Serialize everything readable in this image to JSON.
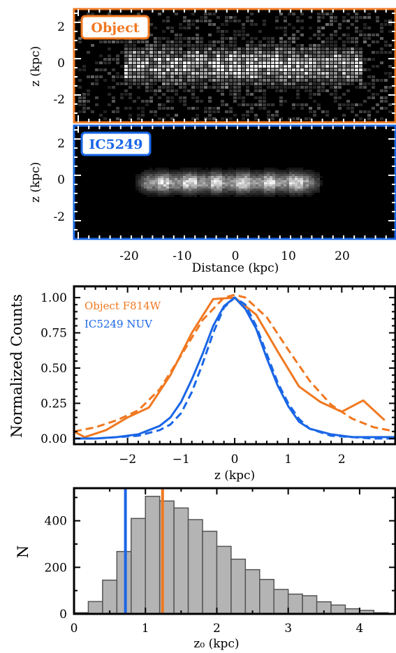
{
  "colors": {
    "object": "#f07820",
    "ic5249": "#1a66e6",
    "hist_fill": "#b4b4b4",
    "hist_edge": "#555555",
    "axis": "#000000"
  },
  "panel_object": {
    "badge": "Object",
    "ylabel": "z (kpc)",
    "yticks": [
      "2",
      "0",
      "-2"
    ]
  },
  "panel_ic5249": {
    "badge": "IC5249",
    "ylabel": "z (kpc)",
    "yticks": [
      "2",
      "0",
      "-2"
    ],
    "xticks": [
      "-20",
      "-10",
      "0",
      "10",
      "20"
    ],
    "xlabel": "Distance (kpc)"
  },
  "chart_data": [
    {
      "type": "line",
      "xlabel": "z (kpc)",
      "ylabel": "Normalized Counts",
      "xlim": [
        -3.0,
        3.0
      ],
      "ylim": [
        -0.04,
        1.08
      ],
      "xticks": [
        "−2",
        "−1",
        "0",
        "1",
        "2"
      ],
      "yticks": [
        "0.00",
        "0.25",
        "0.50",
        "0.75",
        "1.00"
      ],
      "legend": [
        "Object F814W",
        "IC5249 NUV"
      ],
      "series": [
        {
          "name": "Object F814W",
          "style": "solid",
          "x": [
            -3.0,
            -2.8,
            -2.4,
            -2.0,
            -1.6,
            -1.2,
            -0.8,
            -0.4,
            0.0,
            0.4,
            0.8,
            1.2,
            1.6,
            2.0,
            2.4,
            2.8
          ],
          "y": [
            0.05,
            0.01,
            0.06,
            0.15,
            0.22,
            0.45,
            0.75,
            0.99,
            1.0,
            0.88,
            0.62,
            0.37,
            0.26,
            0.19,
            0.27,
            0.13
          ]
        },
        {
          "name": "Object F814W",
          "style": "dashed",
          "x": [
            -3.0,
            -2.6,
            -2.2,
            -1.8,
            -1.4,
            -1.0,
            -0.6,
            -0.2,
            0.0,
            0.2,
            0.6,
            1.0,
            1.4,
            1.8,
            2.2,
            2.6,
            3.0
          ],
          "y": [
            0.05,
            0.08,
            0.13,
            0.2,
            0.35,
            0.59,
            0.84,
            1.0,
            1.02,
            1.0,
            0.86,
            0.63,
            0.41,
            0.24,
            0.14,
            0.08,
            0.05
          ]
        },
        {
          "name": "IC5249 NUV",
          "style": "solid",
          "x": [
            -3.0,
            -2.6,
            -2.2,
            -1.8,
            -1.4,
            -1.2,
            -1.0,
            -0.8,
            -0.6,
            -0.4,
            -0.2,
            0.0,
            0.2,
            0.4,
            0.6,
            0.8,
            1.0,
            1.2,
            1.4,
            1.8,
            2.2,
            2.6,
            3.0
          ],
          "y": [
            0.0,
            0.0,
            0.01,
            0.03,
            0.09,
            0.15,
            0.26,
            0.42,
            0.6,
            0.8,
            0.94,
            1.0,
            0.92,
            0.78,
            0.57,
            0.38,
            0.23,
            0.12,
            0.07,
            0.03,
            0.01,
            0.01,
            0.01
          ]
        },
        {
          "name": "IC5249 NUV",
          "style": "dashed",
          "x": [
            -3.0,
            -2.6,
            -2.2,
            -1.8,
            -1.4,
            -1.2,
            -1.0,
            -0.8,
            -0.6,
            -0.4,
            -0.2,
            0.0,
            0.2,
            0.4,
            0.6,
            0.8,
            1.0,
            1.2,
            1.4,
            1.8,
            2.2,
            2.6,
            3.0
          ],
          "y": [
            0.0,
            0.0,
            0.01,
            0.02,
            0.06,
            0.1,
            0.18,
            0.33,
            0.53,
            0.75,
            0.93,
            1.0,
            0.95,
            0.8,
            0.6,
            0.4,
            0.25,
            0.14,
            0.07,
            0.02,
            0.01,
            0.0,
            0.0
          ]
        }
      ]
    },
    {
      "type": "bar",
      "xlabel": "z₀ (kpc)",
      "ylabel": "N",
      "xlim": [
        0.0,
        4.5
      ],
      "ylim": [
        0,
        540
      ],
      "xticks": [
        "0",
        "1",
        "2",
        "3",
        "4"
      ],
      "yticks": [
        "0",
        "200",
        "400"
      ],
      "bin_width": 0.2,
      "bin_starts": [
        0.0,
        0.2,
        0.4,
        0.6,
        0.8,
        1.0,
        1.2,
        1.4,
        1.6,
        1.8,
        2.0,
        2.2,
        2.4,
        2.6,
        2.8,
        3.0,
        3.2,
        3.4,
        3.6,
        3.8,
        4.0,
        4.2
      ],
      "values": [
        5,
        53,
        145,
        268,
        410,
        505,
        485,
        455,
        405,
        355,
        290,
        235,
        190,
        148,
        105,
        85,
        78,
        52,
        38,
        22,
        15,
        5
      ],
      "vlines": [
        {
          "name": "IC5249",
          "x": 0.72
        },
        {
          "name": "Object",
          "x": 1.24
        }
      ]
    }
  ]
}
